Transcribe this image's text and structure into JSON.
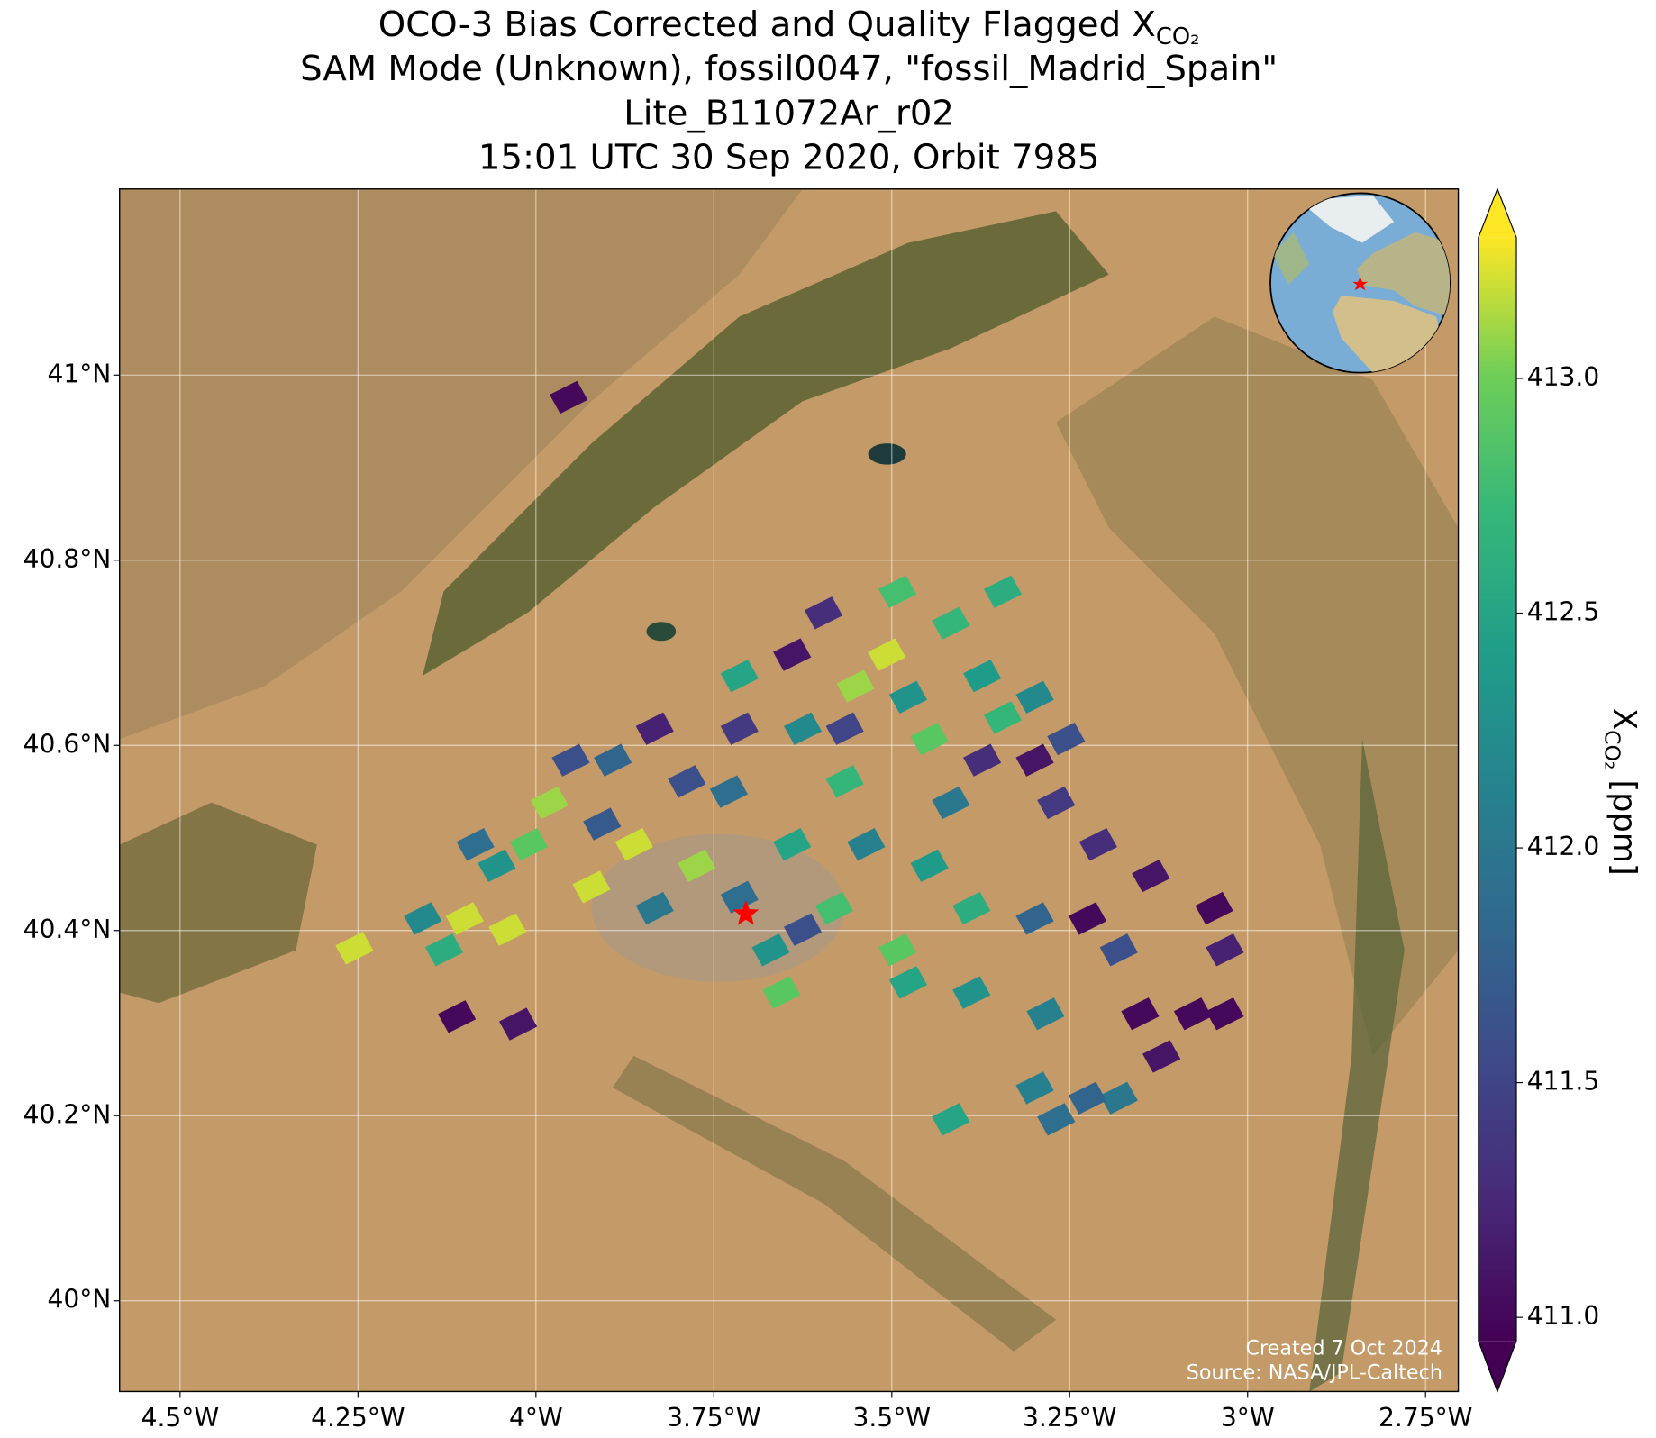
{
  "chart_data": {
    "type": "map",
    "title_lines": [
      "SAM Mode (Unknown), fossil0047, \"fossil_Madrid_Spain\"",
      "Lite_B11072Ar_r02",
      "15:01 UTC 30 Sep 2020, Orbit 7985"
    ],
    "title_main": "OCO-3 Bias Corrected and Quality Flagged X",
    "title_sub": "CO₂",
    "colorbar_label": {
      "main": "X",
      "sub": "CO₂",
      "unit": " [ppm]"
    },
    "credits": [
      "Created 7 Oct 2024",
      "Source: NASA/JPL-Caltech"
    ],
    "colormap": "viridis",
    "clim": [
      410.95,
      413.3
    ],
    "cticks": [
      {
        "value": 411,
        "label": "411.0"
      },
      {
        "value": 411.5,
        "label": "411.5"
      },
      {
        "value": 412,
        "label": "412.0"
      },
      {
        "value": 412.5,
        "label": "412.5"
      },
      {
        "value": 413,
        "label": "413.0"
      }
    ],
    "xlim": [
      -4.585,
      -2.704
    ],
    "ylim": [
      39.902,
      41.201
    ],
    "xticks": [
      {
        "value": -4.5,
        "label": "4.5°W"
      },
      {
        "value": -4.25,
        "label": "4.25°W"
      },
      {
        "value": -4,
        "label": "4°W"
      },
      {
        "value": -3.75,
        "label": "3.75°W"
      },
      {
        "value": -3.5,
        "label": "3.5°W"
      },
      {
        "value": -3.25,
        "label": "3.25°W"
      },
      {
        "value": -3,
        "label": "3°W"
      },
      {
        "value": -2.75,
        "label": "2.75°W"
      }
    ],
    "yticks": [
      {
        "value": 40,
        "label": "40°N"
      },
      {
        "value": 40.2,
        "label": "40.2°N"
      },
      {
        "value": 40.4,
        "label": "40.4°N"
      },
      {
        "value": 40.6,
        "label": "40.6°N"
      },
      {
        "value": 40.8,
        "label": "40.8°N"
      },
      {
        "value": 41,
        "label": "41°N"
      }
    ],
    "grid": true,
    "target": {
      "lon": -3.705,
      "lat": 40.418
    },
    "lon": [
      -3.954,
      -4.111,
      -4.025,
      -4.255,
      -4.1,
      -4.04,
      -3.981,
      -3.862,
      -3.788,
      -3.714,
      -3.833,
      -3.64,
      -3.492,
      -3.507,
      -3.417,
      -3.596,
      -3.344,
      -3.373,
      -3.299,
      -3.447,
      -3.566,
      -3.64,
      -3.774,
      -3.833,
      -3.907,
      -3.922,
      -4.159,
      -4.129,
      -3.67,
      -3.625,
      -3.655,
      -3.581,
      -3.492,
      -3.477,
      -3.536,
      -3.447,
      -3.388,
      -3.373,
      -3.299,
      -3.269,
      -3.255,
      -3.388,
      -3.284,
      -3.299,
      -3.225,
      -3.21,
      -3.181,
      -3.136,
      -3.151,
      -3.121,
      -3.077,
      -3.032,
      -3.047,
      -3.032,
      -3.181,
      -3.225,
      -3.299,
      -3.417,
      -3.269,
      -3.714,
      -3.951,
      -3.892,
      -3.729,
      -3.625,
      -3.551,
      -3.714,
      -3.566,
      -3.477,
      -3.344,
      -3.417,
      -4.055,
      -4.01,
      -4.085
    ],
    "lat": [
      40.976,
      40.307,
      40.299,
      40.381,
      40.413,
      40.401,
      40.538,
      40.493,
      40.561,
      40.618,
      40.618,
      40.698,
      40.766,
      40.698,
      40.732,
      40.743,
      40.766,
      40.675,
      40.652,
      40.607,
      40.561,
      40.493,
      40.47,
      40.424,
      40.515,
      40.447,
      40.413,
      40.379,
      40.379,
      40.401,
      40.333,
      40.424,
      40.379,
      40.344,
      40.493,
      40.47,
      40.424,
      40.584,
      40.584,
      40.538,
      40.607,
      40.333,
      40.31,
      40.413,
      40.413,
      40.493,
      40.379,
      40.459,
      40.31,
      40.264,
      40.31,
      40.379,
      40.424,
      40.31,
      40.219,
      40.219,
      40.23,
      40.196,
      40.196,
      40.436,
      40.584,
      40.584,
      40.55,
      40.618,
      40.664,
      40.675,
      40.618,
      40.652,
      40.63,
      40.538,
      40.47,
      40.493,
      40.493
    ],
    "xco2": [
      411.0,
      411.0,
      411.1,
      413.2,
      413.2,
      413.2,
      413.1,
      413.2,
      411.6,
      411.4,
      411.2,
      411.1,
      412.8,
      413.2,
      412.7,
      411.3,
      412.6,
      412.4,
      412.2,
      412.9,
      412.7,
      412.5,
      413.1,
      412.0,
      411.7,
      413.2,
      412.2,
      412.6,
      412.3,
      411.6,
      412.9,
      412.8,
      412.9,
      412.5,
      412.1,
      412.4,
      412.6,
      411.3,
      411.1,
      411.4,
      411.6,
      412.3,
      412.1,
      411.8,
      411.0,
      411.3,
      411.6,
      411.1,
      411.0,
      411.1,
      411.0,
      411.2,
      411.0,
      411.0,
      412.0,
      411.8,
      412.1,
      412.5,
      411.9,
      411.9,
      411.6,
      411.8,
      411.9,
      412.2,
      413.1,
      412.5,
      411.5,
      412.3,
      412.7,
      412.0,
      412.3,
      412.9,
      411.9
    ]
  }
}
